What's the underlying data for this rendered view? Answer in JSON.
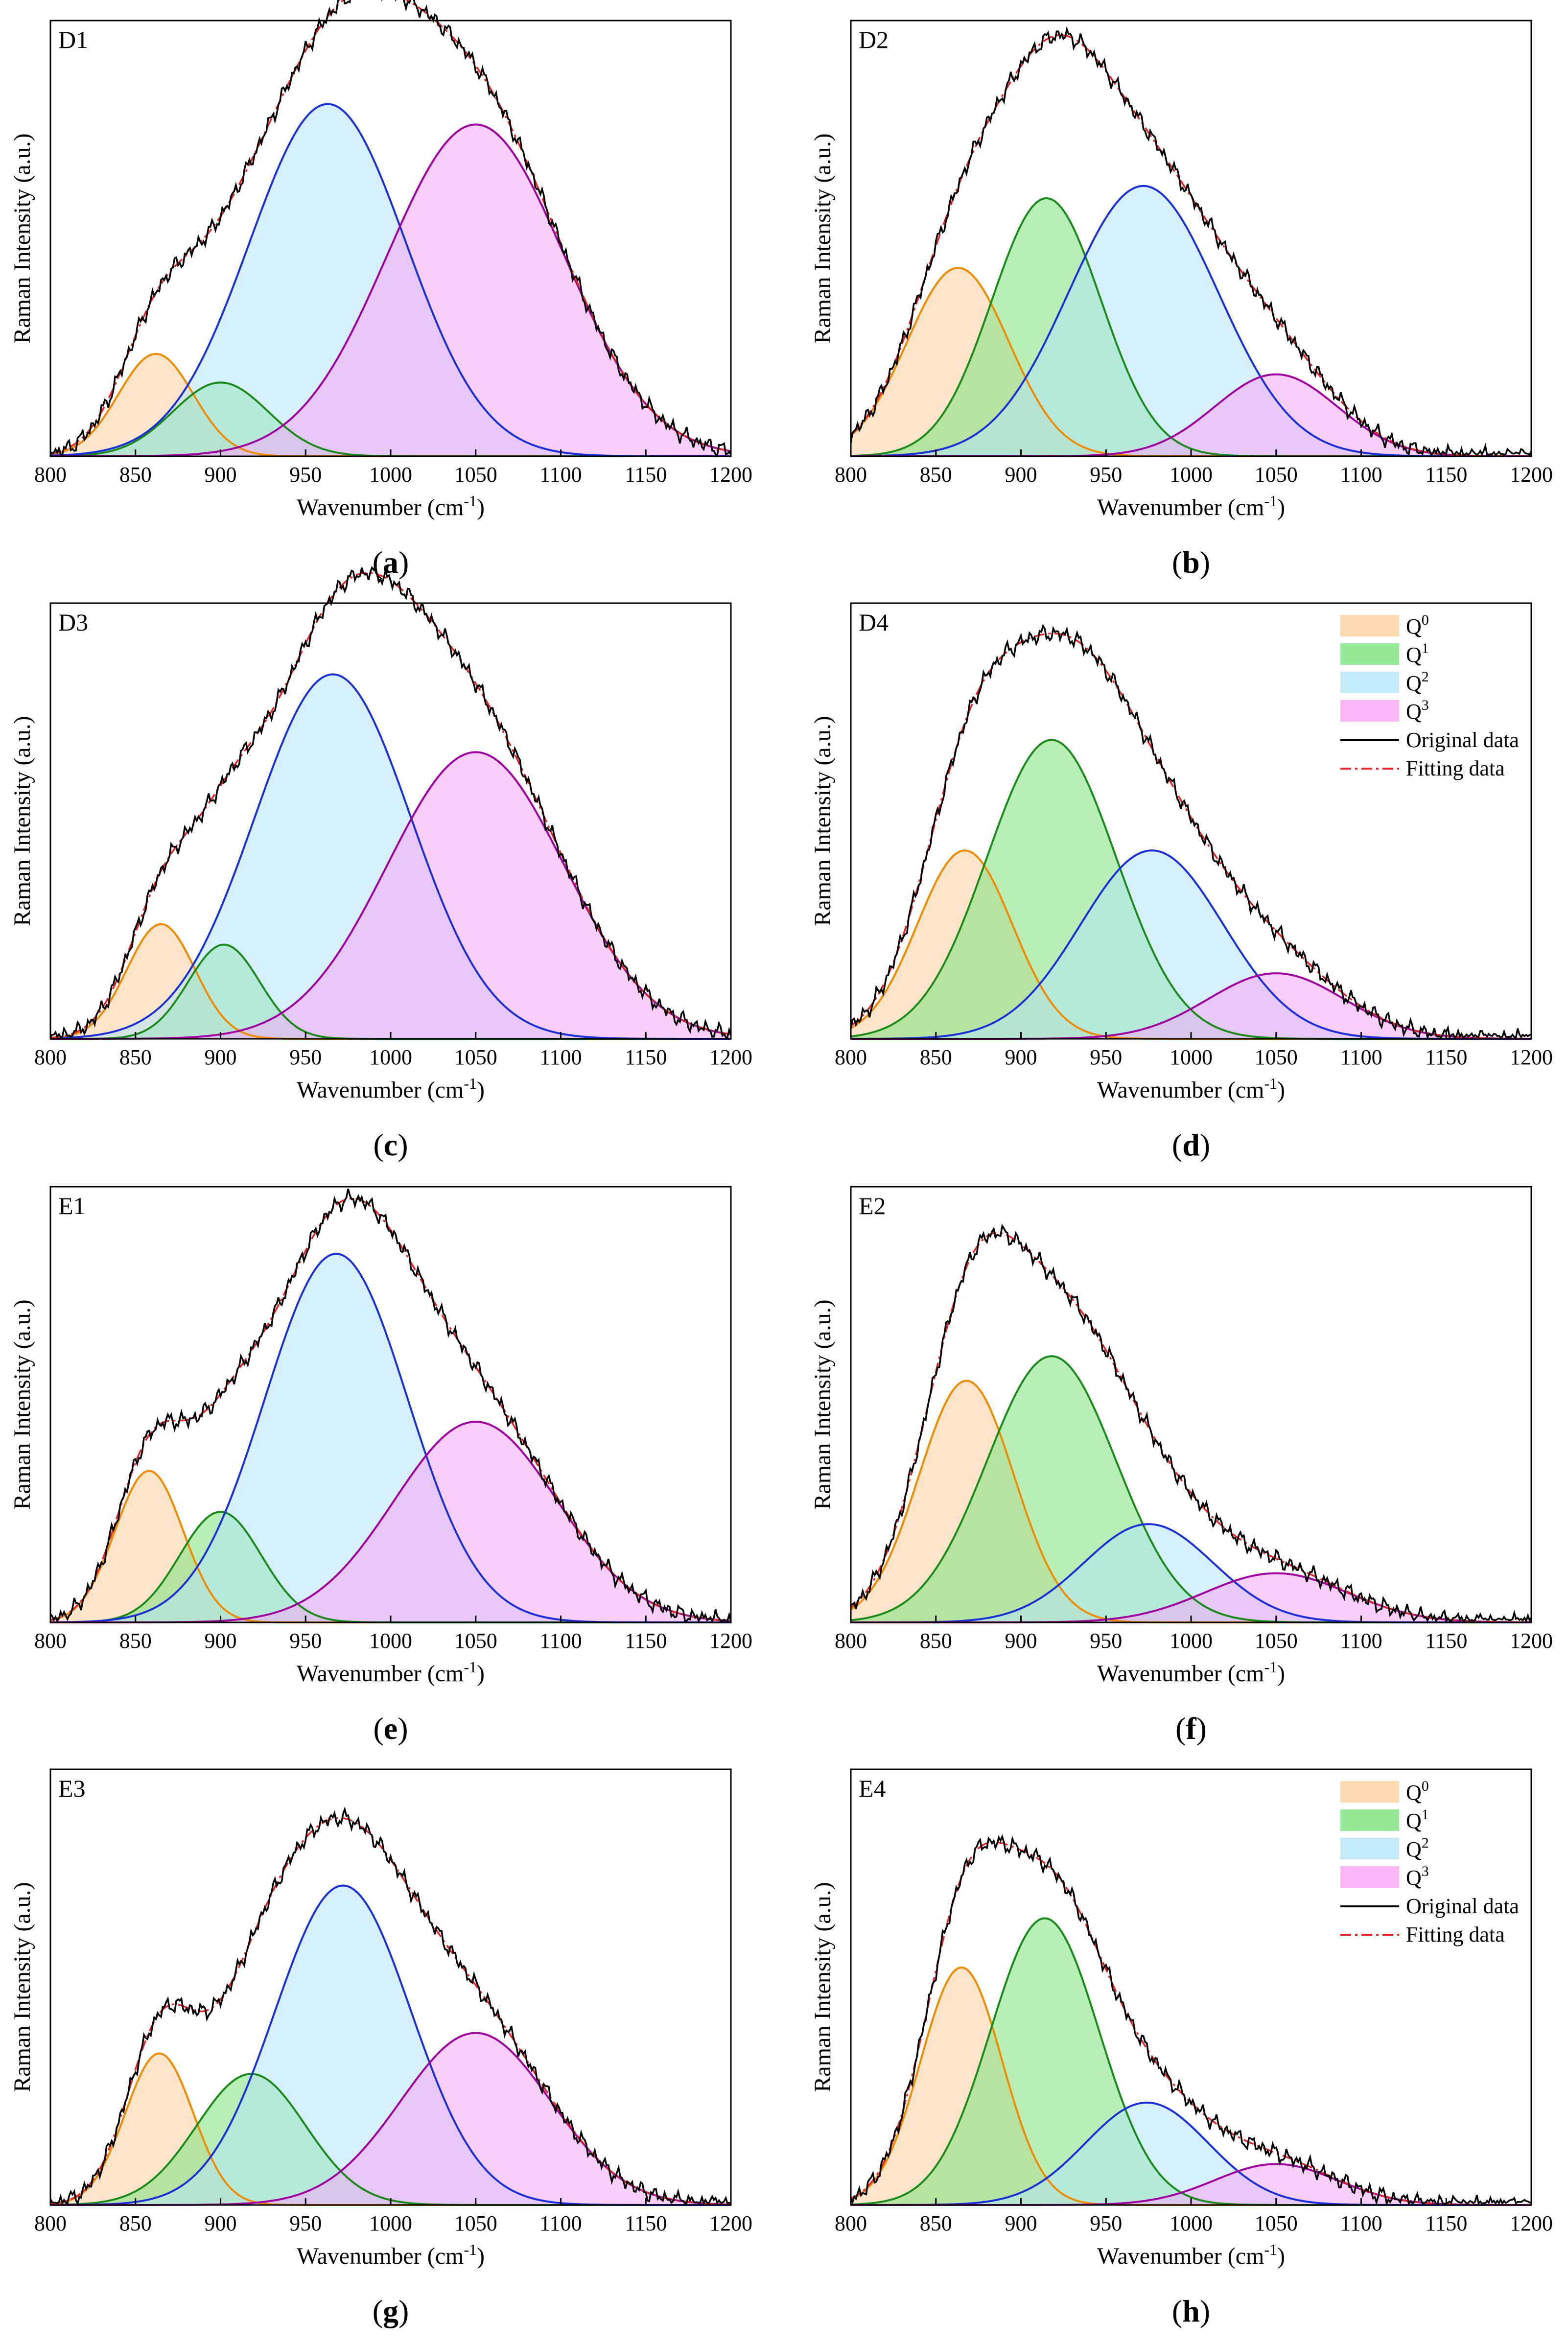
{
  "chart_data": [
    {
      "type": "line",
      "panel": "D1",
      "caption": "a",
      "xlabel": "Wavenumber (cm",
      "xlabel_sup": "-1",
      "xlabel_end": ")",
      "ylabel": "Raman Intensity (a.u.)",
      "xlim": [
        800,
        1200
      ],
      "xticks": [
        800,
        850,
        900,
        950,
        1000,
        1050,
        1100,
        1150,
        1200
      ],
      "ylim": [
        0,
        1
      ],
      "series": [
        {
          "name": "Q0",
          "center": 862,
          "height": 0.25,
          "width": 22
        },
        {
          "name": "Q1",
          "center": 900,
          "height": 0.18,
          "width": 28
        },
        {
          "name": "Q2",
          "center": 963,
          "height": 0.86,
          "width": 46
        },
        {
          "name": "Q3",
          "center": 1050,
          "height": 0.81,
          "width": 52
        }
      ],
      "legend": false
    },
    {
      "type": "line",
      "panel": "D2",
      "caption": "b",
      "xlabel": "Wavenumber (cm",
      "xlabel_sup": "-1",
      "xlabel_end": ")",
      "ylabel": "Raman Intensity (a.u.)",
      "xlim": [
        800,
        1200
      ],
      "xticks": [
        800,
        850,
        900,
        950,
        1000,
        1050,
        1100,
        1150,
        1200
      ],
      "ylim": [
        0,
        1
      ],
      "series": [
        {
          "name": "Q0",
          "center": 863,
          "height": 0.46,
          "width": 30
        },
        {
          "name": "Q1",
          "center": 915,
          "height": 0.63,
          "width": 32
        },
        {
          "name": "Q2",
          "center": 972,
          "height": 0.66,
          "width": 44
        },
        {
          "name": "Q3",
          "center": 1050,
          "height": 0.2,
          "width": 36
        }
      ],
      "legend": false
    },
    {
      "type": "line",
      "panel": "D3",
      "caption": "c",
      "xlabel": "Wavenumber (cm",
      "xlabel_sup": "-1",
      "xlabel_end": ")",
      "ylabel": "Raman Intensity (a.u.)",
      "xlim": [
        800,
        1200
      ],
      "xticks": [
        800,
        850,
        900,
        950,
        1000,
        1050,
        1100,
        1150,
        1200
      ],
      "ylim": [
        0,
        1
      ],
      "series": [
        {
          "name": "Q0",
          "center": 865,
          "height": 0.28,
          "width": 20
        },
        {
          "name": "Q1",
          "center": 902,
          "height": 0.23,
          "width": 21
        },
        {
          "name": "Q2",
          "center": 966,
          "height": 0.89,
          "width": 46
        },
        {
          "name": "Q3",
          "center": 1050,
          "height": 0.7,
          "width": 52
        }
      ],
      "legend": false
    },
    {
      "type": "line",
      "panel": "D4",
      "caption": "d",
      "xlabel": "Wavenumber (cm",
      "xlabel_sup": "-1",
      "xlabel_end": ")",
      "ylabel": "Raman Intensity (a.u.)",
      "xlim": [
        800,
        1200
      ],
      "xticks": [
        800,
        850,
        900,
        950,
        1000,
        1050,
        1100,
        1150,
        1200
      ],
      "ylim": [
        0,
        1
      ],
      "series": [
        {
          "name": "Q0",
          "center": 867,
          "height": 0.46,
          "width": 28
        },
        {
          "name": "Q1",
          "center": 918,
          "height": 0.73,
          "width": 38
        },
        {
          "name": "Q2",
          "center": 977,
          "height": 0.46,
          "width": 42
        },
        {
          "name": "Q3",
          "center": 1050,
          "height": 0.16,
          "width": 40
        }
      ],
      "legend": true
    },
    {
      "type": "line",
      "panel": "E1",
      "caption": "e",
      "xlabel": "Wavenumber (cm",
      "xlabel_sup": "-1",
      "xlabel_end": ")",
      "ylabel": "Raman Intensity (a.u.)",
      "xlim": [
        800,
        1200
      ],
      "xticks": [
        800,
        850,
        900,
        950,
        1000,
        1050,
        1100,
        1150,
        1200
      ],
      "ylim": [
        0,
        1
      ],
      "series": [
        {
          "name": "Q0",
          "center": 858,
          "height": 0.37,
          "width": 20
        },
        {
          "name": "Q1",
          "center": 900,
          "height": 0.27,
          "width": 24
        },
        {
          "name": "Q2",
          "center": 968,
          "height": 0.9,
          "width": 42
        },
        {
          "name": "Q3",
          "center": 1050,
          "height": 0.49,
          "width": 48
        }
      ],
      "legend": false
    },
    {
      "type": "line",
      "panel": "E2",
      "caption": "f",
      "xlabel": "Wavenumber (cm",
      "xlabel_sup": "-1",
      "xlabel_end": ")",
      "ylabel": "Raman Intensity (a.u.)",
      "xlim": [
        800,
        1200
      ],
      "xticks": [
        800,
        850,
        900,
        950,
        1000,
        1050,
        1100,
        1150,
        1200
      ],
      "ylim": [
        0,
        1
      ],
      "series": [
        {
          "name": "Q0",
          "center": 868,
          "height": 0.59,
          "width": 28
        },
        {
          "name": "Q1",
          "center": 918,
          "height": 0.65,
          "width": 38
        },
        {
          "name": "Q2",
          "center": 975,
          "height": 0.24,
          "width": 38
        },
        {
          "name": "Q3",
          "center": 1050,
          "height": 0.12,
          "width": 42
        }
      ],
      "legend": false
    },
    {
      "type": "line",
      "panel": "E3",
      "caption": "g",
      "xlabel": "Wavenumber (cm",
      "xlabel_sup": "-1",
      "xlabel_end": ")",
      "ylabel": "Raman Intensity (a.u.)",
      "xlim": [
        800,
        1200
      ],
      "xticks": [
        800,
        850,
        900,
        950,
        1000,
        1050,
        1100,
        1150,
        1200
      ],
      "ylim": [
        0,
        1
      ],
      "series": [
        {
          "name": "Q0",
          "center": 864,
          "height": 0.37,
          "width": 20
        },
        {
          "name": "Q1",
          "center": 918,
          "height": 0.32,
          "width": 32
        },
        {
          "name": "Q2",
          "center": 972,
          "height": 0.78,
          "width": 40
        },
        {
          "name": "Q3",
          "center": 1050,
          "height": 0.42,
          "width": 44
        }
      ],
      "legend": false
    },
    {
      "type": "line",
      "panel": "E4",
      "caption": "h",
      "xlabel": "Wavenumber (cm",
      "xlabel_sup": "-1",
      "xlabel_end": ")",
      "ylabel": "Raman Intensity (a.u.)",
      "xlim": [
        800,
        1200
      ],
      "xticks": [
        800,
        850,
        900,
        950,
        1000,
        1050,
        1100,
        1150,
        1200
      ],
      "ylim": [
        0,
        1
      ],
      "series": [
        {
          "name": "Q0",
          "center": 865,
          "height": 0.58,
          "width": 24
        },
        {
          "name": "Q1",
          "center": 914,
          "height": 0.7,
          "width": 32
        },
        {
          "name": "Q2",
          "center": 974,
          "height": 0.25,
          "width": 36
        },
        {
          "name": "Q3",
          "center": 1050,
          "height": 0.1,
          "width": 36
        }
      ],
      "legend": true
    }
  ],
  "legend": [
    {
      "label": "Q",
      "sup": "0",
      "kind": "patch",
      "color": "#f5a25d"
    },
    {
      "label": "Q",
      "sup": "1",
      "kind": "patch",
      "color": "#3ec43e"
    },
    {
      "label": "Q",
      "sup": "2",
      "kind": "patch",
      "color": "#5cc8ee"
    },
    {
      "label": "Q",
      "sup": "3",
      "kind": "patch",
      "color": "#ea5cea"
    },
    {
      "label": "Original data",
      "sup": "",
      "kind": "line",
      "color": "#000000"
    },
    {
      "label": "Fitting data",
      "sup": "",
      "kind": "dashdot",
      "color": "#e8202a"
    }
  ],
  "colors": {
    "Q0": {
      "stroke": "#f08a00",
      "fill": "#fbcf9e"
    },
    "Q1": {
      "stroke": "#1a8a1a",
      "fill": "#7be27b"
    },
    "Q2": {
      "stroke": "#1a2fd8",
      "fill": "#b5e6f8"
    },
    "Q3": {
      "stroke": "#a000a0",
      "fill": "#f5a5f5"
    },
    "original": "#000000",
    "fit": "#e8202a"
  }
}
